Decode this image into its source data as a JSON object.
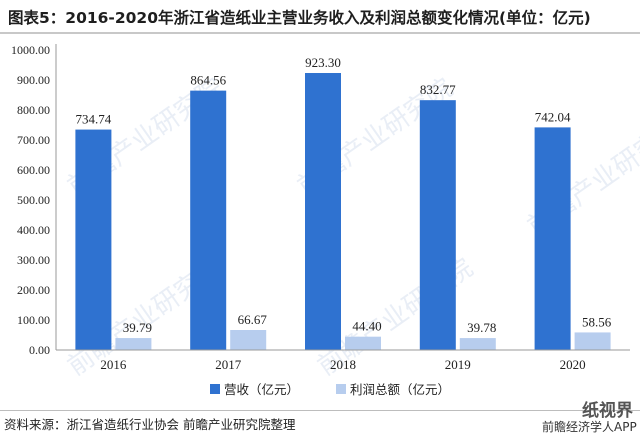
{
  "title": "图表5：2016-2020年浙江省造纸业主营业务收入及利润总额变化情况(单位：亿元)",
  "source": "资料来源：浙江省造纸行业协会 前瞻产业研究院整理",
  "watermark": "前瞻产业研究院",
  "logo": {
    "brand": "纸视界",
    "app_text": "前瞻经济学人APP"
  },
  "colors": {
    "revenue": "#2f72d0",
    "profit": "#b7cdee",
    "axis": "#444444",
    "text": "#222222"
  },
  "chart_data": {
    "type": "bar",
    "categories": [
      "2016",
      "2017",
      "2018",
      "2019",
      "2020"
    ],
    "series": [
      {
        "name": "营收（亿元）",
        "values": [
          734.74,
          864.56,
          923.3,
          832.77,
          742.04
        ]
      },
      {
        "name": "利润总额（亿元）",
        "values": [
          39.79,
          66.67,
          44.4,
          39.78,
          58.56
        ]
      }
    ],
    "ylim": [
      0,
      1000
    ],
    "yticks": [
      "0.00",
      "100.00",
      "200.00",
      "300.00",
      "400.00",
      "500.00",
      "600.00",
      "700.00",
      "800.00",
      "900.00",
      "1000.00"
    ],
    "value_labels": [
      [
        "734.74",
        "864.56",
        "923.30",
        "832.77",
        "742.04"
      ],
      [
        "39.79",
        "66.67",
        "44.40",
        "39.78",
        "58.56"
      ]
    ],
    "grid": false,
    "legend_position": "bottom"
  }
}
